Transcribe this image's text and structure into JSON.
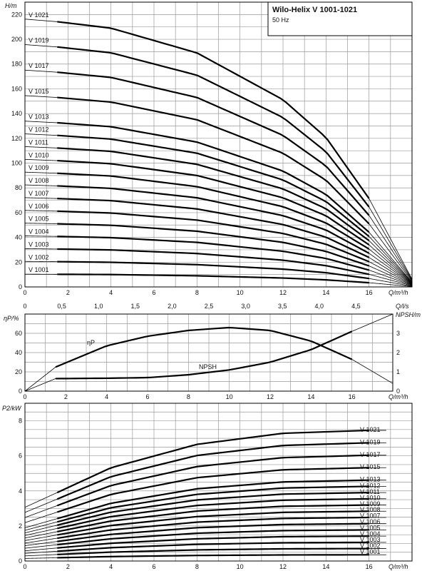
{
  "title": "Wilo-Helix V 1001-1021",
  "subtitle": "50 Hz",
  "chart_data": [
    {
      "id": "head",
      "type": "line",
      "ylabel": "H/m",
      "xlabel": "Q/m³/h",
      "xlim": [
        0,
        18
      ],
      "ylim": [
        0,
        230
      ],
      "xticks": [
        0,
        2,
        4,
        6,
        8,
        10,
        12,
        14,
        16
      ],
      "yticks": [
        0,
        20,
        40,
        60,
        80,
        100,
        120,
        140,
        160,
        180,
        200,
        220
      ],
      "grid": true,
      "series": [
        {
          "name": "V 1001",
          "x": [
            0,
            1.5,
            4,
            8,
            12,
            14,
            16,
            18
          ],
          "y": [
            10.3,
            10.2,
            10.0,
            9.0,
            7.2,
            5.7,
            3.4,
            0.3
          ]
        },
        {
          "name": "V 1002",
          "x": [
            0,
            1.5,
            4,
            8,
            12,
            14,
            16,
            18
          ],
          "y": [
            20.6,
            20.4,
            19.9,
            18.0,
            14.4,
            11.5,
            6.8,
            0.6
          ]
        },
        {
          "name": "V 1003",
          "x": [
            0,
            1.5,
            4,
            8,
            12,
            14,
            16,
            18
          ],
          "y": [
            30.9,
            30.6,
            29.9,
            27.0,
            21.6,
            17.2,
            10.2,
            0.9
          ]
        },
        {
          "name": "V 1004",
          "x": [
            0,
            1.5,
            4,
            8,
            12,
            14,
            16,
            18
          ],
          "y": [
            41.2,
            40.8,
            39.8,
            36.0,
            28.8,
            23.0,
            13.6,
            1.2
          ]
        },
        {
          "name": "V 1005",
          "x": [
            0,
            1.5,
            4,
            8,
            12,
            14,
            16,
            18
          ],
          "y": [
            51.5,
            51.0,
            49.8,
            45.0,
            36.0,
            28.7,
            17.0,
            1.5
          ]
        },
        {
          "name": "V 1006",
          "x": [
            0,
            1.5,
            4,
            8,
            12,
            14,
            16,
            18
          ],
          "y": [
            61.8,
            61.2,
            59.7,
            54.0,
            43.2,
            34.5,
            20.4,
            1.8
          ]
        },
        {
          "name": "V 1007",
          "x": [
            0,
            1.5,
            4,
            8,
            12,
            14,
            16,
            18
          ],
          "y": [
            72.1,
            71.4,
            69.7,
            63.0,
            50.4,
            40.2,
            23.8,
            2.1
          ]
        },
        {
          "name": "V 1008",
          "x": [
            0,
            1.5,
            4,
            8,
            12,
            14,
            16,
            18
          ],
          "y": [
            82.4,
            81.6,
            79.6,
            72.0,
            57.6,
            46.0,
            27.2,
            2.4
          ]
        },
        {
          "name": "V 1009",
          "x": [
            0,
            1.5,
            4,
            8,
            12,
            14,
            16,
            18
          ],
          "y": [
            92.7,
            91.8,
            89.6,
            81.0,
            64.8,
            51.7,
            30.6,
            2.7
          ]
        },
        {
          "name": "V 1010",
          "x": [
            0,
            1.5,
            4,
            8,
            12,
            14,
            16,
            18
          ],
          "y": [
            103.0,
            102.0,
            99.5,
            90.0,
            72.0,
            57.5,
            34.0,
            3.0
          ]
        },
        {
          "name": "V 1011",
          "x": [
            0,
            1.5,
            4,
            8,
            12,
            14,
            16,
            18
          ],
          "y": [
            113.3,
            112.2,
            109.5,
            99.0,
            79.2,
            63.2,
            37.4,
            3.3
          ]
        },
        {
          "name": "V 1012",
          "x": [
            0,
            1.5,
            4,
            8,
            12,
            14,
            16,
            18
          ],
          "y": [
            123.6,
            122.4,
            119.4,
            108.0,
            86.4,
            69.0,
            40.8,
            3.6
          ]
        },
        {
          "name": "V 1013",
          "x": [
            0,
            1.5,
            4,
            8,
            12,
            14,
            16,
            18
          ],
          "y": [
            133.9,
            132.6,
            129.4,
            117.0,
            93.6,
            74.7,
            44.2,
            3.9
          ]
        },
        {
          "name": "V 1015",
          "x": [
            0,
            1.5,
            4,
            8,
            12,
            14,
            16,
            18
          ],
          "y": [
            154.5,
            153.0,
            149.3,
            135.0,
            108.0,
            86.2,
            51.0,
            4.5
          ]
        },
        {
          "name": "V 1017",
          "x": [
            0,
            1.5,
            4,
            8,
            12,
            14,
            16,
            18
          ],
          "y": [
            175.1,
            173.4,
            169.2,
            153.0,
            122.4,
            97.7,
            57.8,
            5.1
          ]
        },
        {
          "name": "V 1019",
          "x": [
            0,
            1.5,
            4,
            8,
            12,
            14,
            16,
            18
          ],
          "y": [
            195.7,
            193.8,
            189.1,
            171.0,
            136.8,
            109.2,
            64.6,
            5.7
          ]
        },
        {
          "name": "V 1021",
          "x": [
            0,
            1.5,
            4,
            8,
            12,
            14,
            16,
            18
          ],
          "y": [
            216.3,
            214.2,
            209.0,
            189.0,
            151.2,
            120.7,
            71.4,
            6.3
          ]
        }
      ]
    },
    {
      "id": "efficiency",
      "type": "line",
      "ylabel": "ηP/%",
      "ylabel2": "NPSH/m",
      "xlabel": "Q/m³/h",
      "xlabel_top": "Q/l/s",
      "xlim": [
        0,
        18
      ],
      "ylim": [
        0,
        80
      ],
      "ylim2": [
        0,
        4
      ],
      "xticks": [
        0,
        2,
        4,
        6,
        8,
        10,
        12,
        14,
        16
      ],
      "xticks_top": [
        "0",
        "0,5",
        "1,0",
        "1,5",
        "2,0",
        "2,5",
        "3,0",
        "3,5",
        "4,0",
        "4,5"
      ],
      "yticks": [
        0,
        20,
        40,
        60
      ],
      "yticks2": [
        0,
        1,
        2,
        3
      ],
      "grid": true,
      "series": [
        {
          "name": "ηP",
          "axis": "left",
          "x": [
            0,
            1.5,
            4,
            6,
            8,
            10,
            12,
            14,
            16,
            18
          ],
          "y": [
            0,
            25,
            47,
            57,
            63,
            66,
            63,
            52,
            33,
            8
          ]
        },
        {
          "name": "NPSH",
          "axis": "right",
          "x": [
            0,
            1.5,
            4,
            6,
            8,
            10,
            12,
            14,
            16,
            18
          ],
          "y": [
            0,
            0.65,
            0.67,
            0.7,
            0.85,
            1.1,
            1.5,
            2.15,
            3.1,
            4.0
          ]
        }
      ]
    },
    {
      "id": "power",
      "type": "line",
      "ylabel": "P2/kW",
      "xlabel": "Q/m³/h",
      "xlim": [
        0,
        18
      ],
      "ylim": [
        0,
        9
      ],
      "xticks": [
        0,
        2,
        4,
        6,
        8,
        10,
        12,
        14,
        16
      ],
      "yticks": [
        0,
        2,
        4,
        6,
        8
      ],
      "grid": true,
      "series": [
        {
          "name": "V 1001",
          "x": [
            0,
            1.5,
            4,
            8,
            12,
            16,
            16.8
          ],
          "y": [
            0.146,
            0.186,
            0.253,
            0.317,
            0.347,
            0.355,
            0.355
          ]
        },
        {
          "name": "V 1002",
          "x": [
            0,
            1.5,
            4,
            8,
            12,
            16,
            16.8
          ],
          "y": [
            0.292,
            0.372,
            0.507,
            0.634,
            0.694,
            0.71,
            0.71
          ]
        },
        {
          "name": "V 1003",
          "x": [
            0,
            1.5,
            4,
            8,
            12,
            16,
            16.8
          ],
          "y": [
            0.438,
            0.558,
            0.76,
            0.951,
            1.04,
            1.065,
            1.065
          ]
        },
        {
          "name": "V 1004",
          "x": [
            0,
            1.5,
            4,
            8,
            12,
            16,
            16.8
          ],
          "y": [
            0.583,
            0.744,
            1.013,
            1.268,
            1.388,
            1.42,
            1.42
          ]
        },
        {
          "name": "V 1005",
          "x": [
            0,
            1.5,
            4,
            8,
            12,
            16,
            16.8
          ],
          "y": [
            0.729,
            0.93,
            1.267,
            1.585,
            1.735,
            1.775,
            1.775
          ]
        },
        {
          "name": "V 1006",
          "x": [
            0,
            1.5,
            4,
            8,
            12,
            16,
            16.8
          ],
          "y": [
            0.875,
            1.116,
            1.52,
            1.901,
            2.082,
            2.13,
            2.13
          ]
        },
        {
          "name": "V 1007",
          "x": [
            0,
            1.5,
            4,
            8,
            12,
            16,
            16.8
          ],
          "y": [
            1.021,
            1.302,
            1.773,
            2.218,
            2.429,
            2.485,
            2.485
          ]
        },
        {
          "name": "V 1008",
          "x": [
            0,
            1.5,
            4,
            8,
            12,
            16,
            16.8
          ],
          "y": [
            1.167,
            1.488,
            2.026,
            2.535,
            2.776,
            2.84,
            2.84
          ]
        },
        {
          "name": "V 1009",
          "x": [
            0,
            1.5,
            4,
            8,
            12,
            16,
            16.8
          ],
          "y": [
            1.313,
            1.674,
            2.28,
            2.852,
            3.123,
            3.195,
            3.195
          ]
        },
        {
          "name": "V 1010",
          "x": [
            0,
            1.5,
            4,
            8,
            12,
            16,
            16.8
          ],
          "y": [
            1.459,
            1.86,
            2.533,
            3.169,
            3.47,
            3.55,
            3.55
          ]
        },
        {
          "name": "V 1011",
          "x": [
            0,
            1.5,
            4,
            8,
            12,
            16,
            16.8
          ],
          "y": [
            1.605,
            2.046,
            2.786,
            3.486,
            3.817,
            3.905,
            3.905
          ]
        },
        {
          "name": "V 1012",
          "x": [
            0,
            1.5,
            4,
            8,
            12,
            16,
            16.8
          ],
          "y": [
            1.751,
            2.232,
            3.04,
            3.803,
            4.164,
            4.26,
            4.26
          ]
        },
        {
          "name": "V 1013",
          "x": [
            0,
            1.5,
            4,
            8,
            12,
            16,
            16.8
          ],
          "y": [
            1.897,
            2.418,
            3.293,
            4.12,
            4.511,
            4.615,
            4.615
          ]
        },
        {
          "name": "V 1015",
          "x": [
            0,
            1.5,
            4,
            8,
            12,
            16,
            16.8
          ],
          "y": [
            2.189,
            2.79,
            3.8,
            4.754,
            5.205,
            5.325,
            5.325
          ]
        },
        {
          "name": "V 1017",
          "x": [
            0,
            1.5,
            4,
            8,
            12,
            16,
            16.8
          ],
          "y": [
            2.48,
            3.162,
            4.306,
            5.388,
            5.899,
            6.035,
            6.035
          ]
        },
        {
          "name": "V 1019",
          "x": [
            0,
            1.5,
            4,
            8,
            12,
            16,
            16.8
          ],
          "y": [
            2.772,
            3.534,
            4.813,
            6.022,
            6.593,
            6.745,
            6.745
          ]
        },
        {
          "name": "V 1021",
          "x": [
            0,
            1.5,
            4,
            8,
            12,
            16,
            16.8
          ],
          "y": [
            3.064,
            3.906,
            5.32,
            6.656,
            7.287,
            7.455,
            7.455
          ]
        }
      ]
    }
  ]
}
